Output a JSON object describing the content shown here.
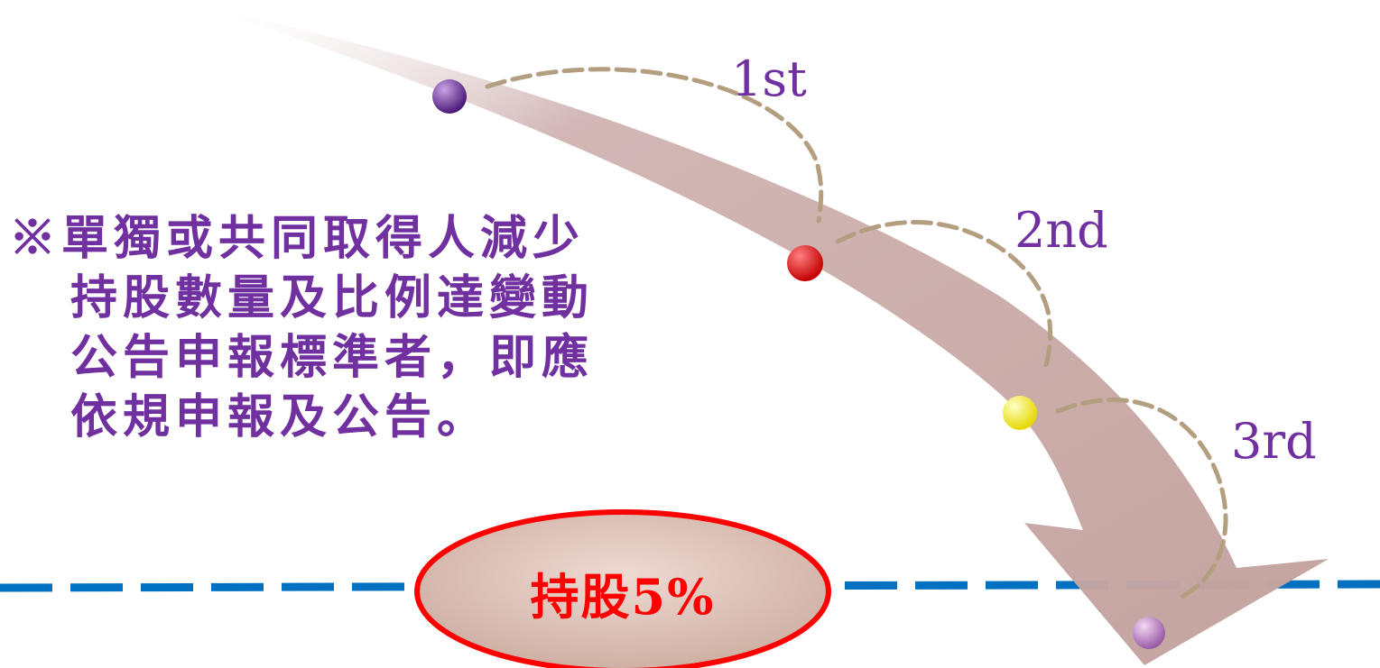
{
  "note": {
    "lines": [
      "※單獨或共同取得人減少",
      "持股數量及比例達變動",
      "公告申報標準者，即應",
      "依規申報及公告。"
    ]
  },
  "steps": [
    {
      "label": "1st"
    },
    {
      "label": "2nd"
    },
    {
      "label": "3rd"
    }
  ],
  "threshold": {
    "label": "持股5%"
  },
  "colors": {
    "text": "#7030a0",
    "arrow": "#c9aaa8",
    "dashed_arc": "#b39e80",
    "threshold_line": "#0070c0",
    "ellipse_border": "#ff0000",
    "ellipse_fill": "#d9bfb5",
    "dot_1": "#6a2c91",
    "dot_2": "#e00000",
    "dot_3": "#f5f500",
    "dot_4": "#c58fc8"
  }
}
